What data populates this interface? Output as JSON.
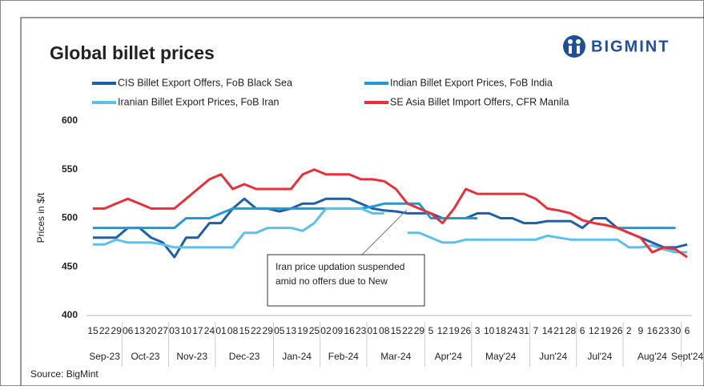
{
  "chart_data": {
    "type": "line",
    "title": "Global billet prices",
    "logo": "BIGMINT",
    "ylabel": "Prices in $/t",
    "source": "Source: BigMint",
    "groups": [
      {
        "month": "Sep-23",
        "days": [
          "15",
          "22",
          "29"
        ]
      },
      {
        "month": "Oct-23",
        "days": [
          "06",
          "13",
          "20",
          "27"
        ]
      },
      {
        "month": "Nov-23",
        "days": [
          "03",
          "10",
          "17",
          "24"
        ]
      },
      {
        "month": "Dec-23",
        "days": [
          "01",
          "08",
          "15",
          "22",
          "29"
        ]
      },
      {
        "month": "Jan-24",
        "days": [
          "05",
          "13",
          "19",
          "25"
        ]
      },
      {
        "month": "Feb-24",
        "days": [
          "02",
          "09",
          "16",
          "23"
        ]
      },
      {
        "month": "Mar-24",
        "days": [
          "01",
          "08",
          "15",
          "22",
          "29"
        ]
      },
      {
        "month": "Apr'24",
        "days": [
          "5",
          "12",
          "19",
          "26"
        ]
      },
      {
        "month": "May'24",
        "days": [
          "3",
          "10",
          "18",
          "24",
          "31"
        ]
      },
      {
        "month": "Jun'24",
        "days": [
          "7",
          "14",
          "21",
          "28"
        ]
      },
      {
        "month": "Jul'24",
        "days": [
          "6",
          "12",
          "19",
          "26"
        ]
      },
      {
        "month": "Aug'24",
        "days": [
          "2",
          "9",
          "16",
          "23",
          "30"
        ]
      },
      {
        "month": "Sept'24",
        "days": [
          "6"
        ]
      }
    ],
    "ylim": [
      400,
      600
    ],
    "yticks": [
      400,
      450,
      500,
      550,
      600
    ],
    "grid": false,
    "annotation": [
      "Iran price updation suspended",
      "amid no offers due to New"
    ],
    "series": [
      {
        "name": "CIS Billet Export Offers, FoB Black Sea",
        "color": "#1f5fa6",
        "values": [
          480,
          480,
          480,
          490,
          490,
          480,
          475,
          460,
          480,
          480,
          495,
          495,
          510,
          520,
          510,
          510,
          507,
          510,
          515,
          515,
          520,
          520,
          520,
          515,
          510,
          508,
          507,
          505,
          505,
          505,
          500,
          500,
          500,
          505,
          505,
          500,
          500,
          495,
          495,
          497,
          497,
          497,
          490,
          500,
          500,
          490,
          485,
          480,
          475,
          470,
          470,
          473
        ]
      },
      {
        "name": "Indian Billet Export Prices, FoB India",
        "color": "#1f9ad6",
        "values": [
          490,
          490,
          490,
          490,
          490,
          490,
          490,
          490,
          500,
          500,
          500,
          505,
          510,
          510,
          510,
          510,
          510,
          510,
          510,
          510,
          510,
          510,
          510,
          510,
          512,
          515,
          515,
          515,
          515,
          500,
          500,
          500,
          500,
          500,
          null,
          null,
          null,
          null,
          null,
          null,
          null,
          null,
          null,
          null,
          null,
          490,
          490,
          490,
          490,
          490,
          490,
          null
        ]
      },
      {
        "name": "Iranian Billet Export Prices, FoB Iran",
        "color": "#5bc0eb",
        "values": [
          473,
          473,
          478,
          475,
          475,
          475,
          473,
          470,
          470,
          470,
          470,
          470,
          470,
          485,
          485,
          490,
          490,
          490,
          487,
          495,
          510,
          510,
          510,
          510,
          505,
          505,
          null,
          485,
          485,
          480,
          475,
          475,
          478,
          478,
          478,
          478,
          478,
          478,
          478,
          482,
          480,
          478,
          478,
          478,
          478,
          478,
          470,
          470,
          472,
          468,
          465,
          465
        ]
      },
      {
        "name": "SE Asia Billet Import Offers, CFR Manila",
        "color": "#e8303a",
        "values": [
          510,
          510,
          515,
          520,
          515,
          510,
          510,
          510,
          520,
          530,
          540,
          545,
          530,
          535,
          530,
          530,
          530,
          530,
          545,
          550,
          545,
          545,
          545,
          540,
          540,
          538,
          530,
          515,
          510,
          505,
          495,
          510,
          530,
          525,
          525,
          525,
          525,
          525,
          520,
          510,
          508,
          505,
          498,
          495,
          493,
          490,
          485,
          480,
          465,
          470,
          468,
          460
        ]
      }
    ]
  }
}
